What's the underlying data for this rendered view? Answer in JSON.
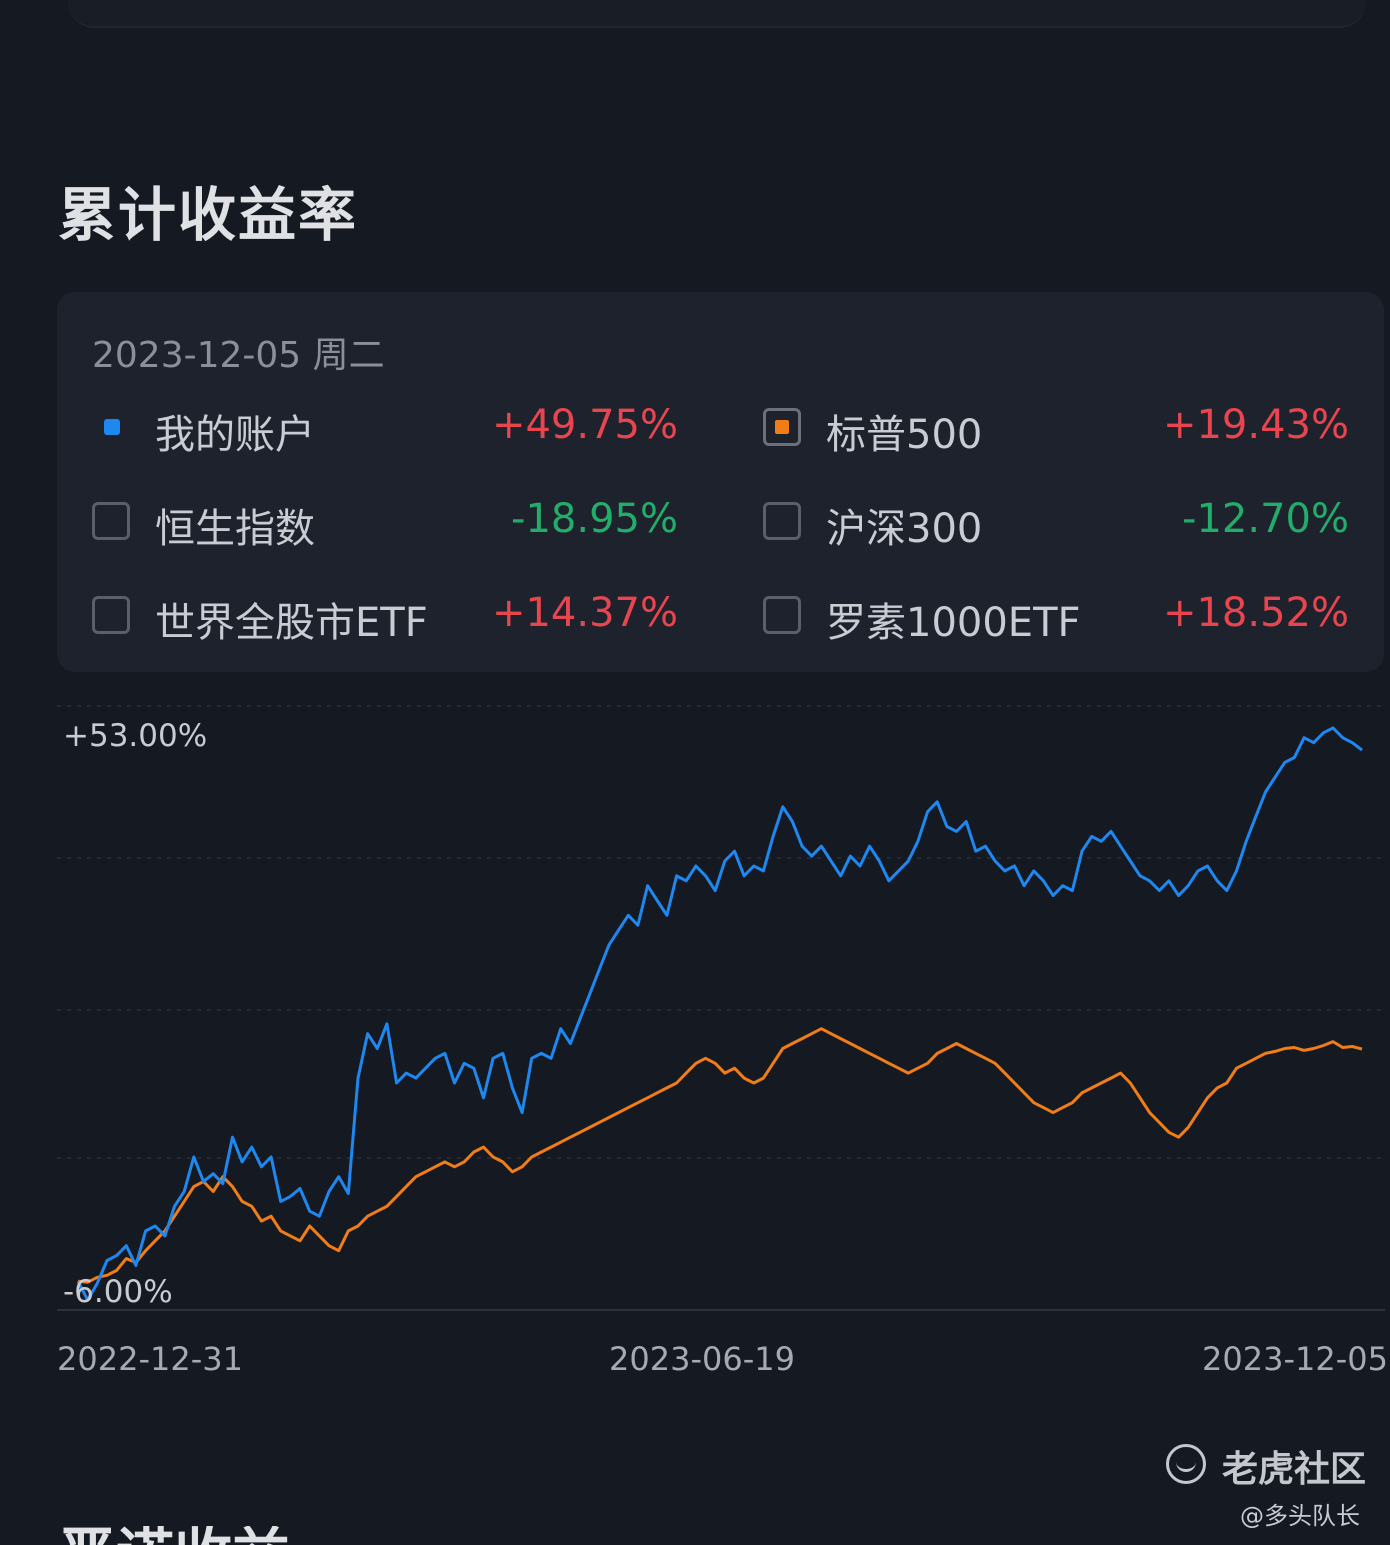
{
  "section": {
    "title": "累计收益率"
  },
  "legend": {
    "date": "2023-12-05 周二",
    "items": [
      {
        "label": "我的账户",
        "value": "+49.75%",
        "marker": "dot",
        "checked": true,
        "color": "#1e88f0",
        "value_color": "#e8454f"
      },
      {
        "label": "标普500",
        "value": "+19.43%",
        "marker": "box",
        "checked": true,
        "color": "#f07d16",
        "value_color": "#e8454f"
      },
      {
        "label": "恒生指数",
        "value": "-18.95%",
        "marker": "box",
        "checked": false,
        "color": "",
        "value_color": "#23ad6b"
      },
      {
        "label": "沪深300",
        "value": "-12.70%",
        "marker": "box",
        "checked": false,
        "color": "",
        "value_color": "#23ad6b"
      },
      {
        "label": "世界全股市ETF",
        "value": "+14.37%",
        "marker": "box",
        "checked": false,
        "color": "",
        "value_color": "#e8454f"
      },
      {
        "label": "罗素1000ETF",
        "value": "+18.52%",
        "marker": "box",
        "checked": false,
        "color": "",
        "value_color": "#e8454f"
      }
    ]
  },
  "chart_data": {
    "type": "line",
    "y_max_label": "+53.00%",
    "y_min_label": "-6.00%",
    "ylim": [
      -6,
      53
    ],
    "x_ticks": [
      "2022-12-31",
      "2023-06-19",
      "2023-12-05"
    ],
    "grid": true,
    "legend": "top",
    "series": [
      {
        "name": "我的账户",
        "color": "#1e88f0",
        "points": [
          [
            0,
            -4.1
          ],
          [
            2,
            -6.0
          ],
          [
            4,
            -4.3
          ],
          [
            6,
            -2.0
          ],
          [
            8,
            -1.5
          ],
          [
            10,
            -0.5
          ],
          [
            12,
            -2.5
          ],
          [
            14,
            1.0
          ],
          [
            16,
            1.5
          ],
          [
            18,
            0.5
          ],
          [
            20,
            3.5
          ],
          [
            22,
            5.0
          ],
          [
            24,
            8.5
          ],
          [
            26,
            6.0
          ],
          [
            28,
            6.8
          ],
          [
            30,
            5.8
          ],
          [
            32,
            10.5
          ],
          [
            34,
            8.0
          ],
          [
            36,
            9.5
          ],
          [
            38,
            7.5
          ],
          [
            40,
            8.5
          ],
          [
            42,
            4.0
          ],
          [
            44,
            4.5
          ],
          [
            46,
            5.3
          ],
          [
            48,
            3.0
          ],
          [
            50,
            2.5
          ],
          [
            52,
            5.0
          ],
          [
            54,
            6.5
          ],
          [
            56,
            4.8
          ],
          [
            58,
            16.5
          ],
          [
            60,
            21.0
          ],
          [
            62,
            19.5
          ],
          [
            64,
            22.0
          ],
          [
            66,
            16.0
          ],
          [
            68,
            17.0
          ],
          [
            70,
            16.5
          ],
          [
            72,
            17.5
          ],
          [
            74,
            18.5
          ],
          [
            76,
            19.0
          ],
          [
            78,
            16.0
          ],
          [
            80,
            18.0
          ],
          [
            82,
            17.5
          ],
          [
            84,
            14.5
          ],
          [
            86,
            18.5
          ],
          [
            88,
            19.0
          ],
          [
            90,
            15.5
          ],
          [
            92,
            13.0
          ],
          [
            94,
            18.5
          ],
          [
            96,
            19.0
          ],
          [
            98,
            18.5
          ],
          [
            100,
            21.5
          ],
          [
            102,
            20.0
          ],
          [
            104,
            22.5
          ],
          [
            106,
            25.0
          ],
          [
            108,
            27.5
          ],
          [
            110,
            30.0
          ],
          [
            112,
            31.5
          ],
          [
            114,
            33.0
          ],
          [
            116,
            32.0
          ],
          [
            118,
            36.0
          ],
          [
            120,
            34.5
          ],
          [
            122,
            33.0
          ],
          [
            124,
            37.0
          ],
          [
            126,
            36.5
          ],
          [
            128,
            38.0
          ],
          [
            130,
            37.0
          ],
          [
            132,
            35.5
          ],
          [
            134,
            38.5
          ],
          [
            136,
            39.5
          ],
          [
            138,
            37.0
          ],
          [
            140,
            38.0
          ],
          [
            142,
            37.5
          ],
          [
            144,
            41.0
          ],
          [
            146,
            44.0
          ],
          [
            148,
            42.5
          ],
          [
            150,
            40.0
          ],
          [
            152,
            39.0
          ],
          [
            154,
            40.0
          ],
          [
            156,
            38.5
          ],
          [
            158,
            37.0
          ],
          [
            160,
            39.0
          ],
          [
            162,
            38.0
          ],
          [
            164,
            40.0
          ],
          [
            166,
            38.5
          ],
          [
            168,
            36.5
          ],
          [
            170,
            37.5
          ],
          [
            172,
            38.5
          ],
          [
            174,
            40.5
          ],
          [
            176,
            43.5
          ],
          [
            178,
            44.5
          ],
          [
            180,
            42.0
          ],
          [
            182,
            41.5
          ],
          [
            184,
            42.5
          ],
          [
            186,
            39.5
          ],
          [
            188,
            40.0
          ],
          [
            190,
            38.5
          ],
          [
            192,
            37.5
          ],
          [
            194,
            38.0
          ],
          [
            196,
            36.0
          ],
          [
            198,
            37.5
          ],
          [
            200,
            36.5
          ],
          [
            202,
            35.0
          ],
          [
            204,
            36.0
          ],
          [
            206,
            35.5
          ],
          [
            208,
            39.5
          ],
          [
            210,
            41.0
          ],
          [
            212,
            40.5
          ],
          [
            214,
            41.5
          ],
          [
            216,
            40.0
          ],
          [
            218,
            38.5
          ],
          [
            220,
            37.0
          ],
          [
            222,
            36.5
          ],
          [
            224,
            35.5
          ],
          [
            226,
            36.5
          ],
          [
            228,
            35.0
          ],
          [
            230,
            36.0
          ],
          [
            232,
            37.5
          ],
          [
            234,
            38.0
          ],
          [
            236,
            36.5
          ],
          [
            238,
            35.5
          ],
          [
            240,
            37.5
          ],
          [
            242,
            40.5
          ],
          [
            244,
            43.0
          ],
          [
            246,
            45.5
          ],
          [
            248,
            47.0
          ],
          [
            250,
            48.5
          ],
          [
            252,
            49.0
          ],
          [
            254,
            51.0
          ],
          [
            256,
            50.5
          ],
          [
            258,
            51.5
          ],
          [
            260,
            52.0
          ],
          [
            262,
            51.0
          ],
          [
            264,
            50.5
          ],
          [
            266,
            49.75
          ]
        ]
      },
      {
        "name": "标普500",
        "color": "#f07d16",
        "points": [
          [
            0,
            -4.1
          ],
          [
            2,
            -4.2
          ],
          [
            4,
            -3.7
          ],
          [
            6,
            -3.5
          ],
          [
            8,
            -3.0
          ],
          [
            10,
            -1.8
          ],
          [
            12,
            -2.2
          ],
          [
            14,
            -1.0
          ],
          [
            16,
            0.0
          ],
          [
            18,
            1.0
          ],
          [
            20,
            2.5
          ],
          [
            22,
            4.0
          ],
          [
            24,
            5.5
          ],
          [
            26,
            6.0
          ],
          [
            28,
            5.0
          ],
          [
            30,
            6.5
          ],
          [
            32,
            5.5
          ],
          [
            34,
            4.0
          ],
          [
            36,
            3.5
          ],
          [
            38,
            2.0
          ],
          [
            40,
            2.5
          ],
          [
            42,
            1.0
          ],
          [
            44,
            0.5
          ],
          [
            46,
            0.0
          ],
          [
            48,
            1.5
          ],
          [
            50,
            0.5
          ],
          [
            52,
            -0.5
          ],
          [
            54,
            -1.0
          ],
          [
            56,
            1.0
          ],
          [
            58,
            1.5
          ],
          [
            60,
            2.5
          ],
          [
            62,
            3.0
          ],
          [
            64,
            3.5
          ],
          [
            66,
            4.5
          ],
          [
            68,
            5.5
          ],
          [
            70,
            6.5
          ],
          [
            72,
            7.0
          ],
          [
            74,
            7.5
          ],
          [
            76,
            8.0
          ],
          [
            78,
            7.5
          ],
          [
            80,
            8.0
          ],
          [
            82,
            9.0
          ],
          [
            84,
            9.5
          ],
          [
            86,
            8.5
          ],
          [
            88,
            8.0
          ],
          [
            90,
            7.0
          ],
          [
            92,
            7.5
          ],
          [
            94,
            8.5
          ],
          [
            96,
            9.0
          ],
          [
            98,
            9.5
          ],
          [
            100,
            10.0
          ],
          [
            102,
            10.5
          ],
          [
            104,
            11.0
          ],
          [
            106,
            11.5
          ],
          [
            108,
            12.0
          ],
          [
            110,
            12.5
          ],
          [
            112,
            13.0
          ],
          [
            114,
            13.5
          ],
          [
            116,
            14.0
          ],
          [
            118,
            14.5
          ],
          [
            120,
            15.0
          ],
          [
            122,
            15.5
          ],
          [
            124,
            16.0
          ],
          [
            126,
            17.0
          ],
          [
            128,
            18.0
          ],
          [
            130,
            18.5
          ],
          [
            132,
            18.0
          ],
          [
            134,
            17.0
          ],
          [
            136,
            17.5
          ],
          [
            138,
            16.5
          ],
          [
            140,
            16.0
          ],
          [
            142,
            16.5
          ],
          [
            144,
            18.0
          ],
          [
            146,
            19.5
          ],
          [
            148,
            20.0
          ],
          [
            150,
            20.5
          ],
          [
            152,
            21.0
          ],
          [
            154,
            21.5
          ],
          [
            156,
            21.0
          ],
          [
            158,
            20.5
          ],
          [
            160,
            20.0
          ],
          [
            162,
            19.5
          ],
          [
            164,
            19.0
          ],
          [
            166,
            18.5
          ],
          [
            168,
            18.0
          ],
          [
            170,
            17.5
          ],
          [
            172,
            17.0
          ],
          [
            174,
            17.5
          ],
          [
            176,
            18.0
          ],
          [
            178,
            19.0
          ],
          [
            180,
            19.5
          ],
          [
            182,
            20.0
          ],
          [
            184,
            19.5
          ],
          [
            186,
            19.0
          ],
          [
            188,
            18.5
          ],
          [
            190,
            18.0
          ],
          [
            192,
            17.0
          ],
          [
            194,
            16.0
          ],
          [
            196,
            15.0
          ],
          [
            198,
            14.0
          ],
          [
            200,
            13.5
          ],
          [
            202,
            13.0
          ],
          [
            204,
            13.5
          ],
          [
            206,
            14.0
          ],
          [
            208,
            15.0
          ],
          [
            210,
            15.5
          ],
          [
            212,
            16.0
          ],
          [
            214,
            16.5
          ],
          [
            216,
            17.0
          ],
          [
            218,
            16.0
          ],
          [
            220,
            14.5
          ],
          [
            222,
            13.0
          ],
          [
            224,
            12.0
          ],
          [
            226,
            11.0
          ],
          [
            228,
            10.5
          ],
          [
            230,
            11.5
          ],
          [
            232,
            13.0
          ],
          [
            234,
            14.5
          ],
          [
            236,
            15.5
          ],
          [
            238,
            16.0
          ],
          [
            240,
            17.5
          ],
          [
            242,
            18.0
          ],
          [
            244,
            18.5
          ],
          [
            246,
            19.0
          ],
          [
            248,
            19.2
          ],
          [
            250,
            19.5
          ],
          [
            252,
            19.6
          ],
          [
            254,
            19.3
          ],
          [
            256,
            19.5
          ],
          [
            258,
            19.8
          ],
          [
            260,
            20.2
          ],
          [
            262,
            19.6
          ],
          [
            264,
            19.7
          ],
          [
            266,
            19.43
          ]
        ]
      }
    ]
  },
  "watermark": {
    "brand": "老虎社区",
    "author": "@多头队长"
  },
  "next_section": {
    "title_peek": "晋诺收益"
  }
}
